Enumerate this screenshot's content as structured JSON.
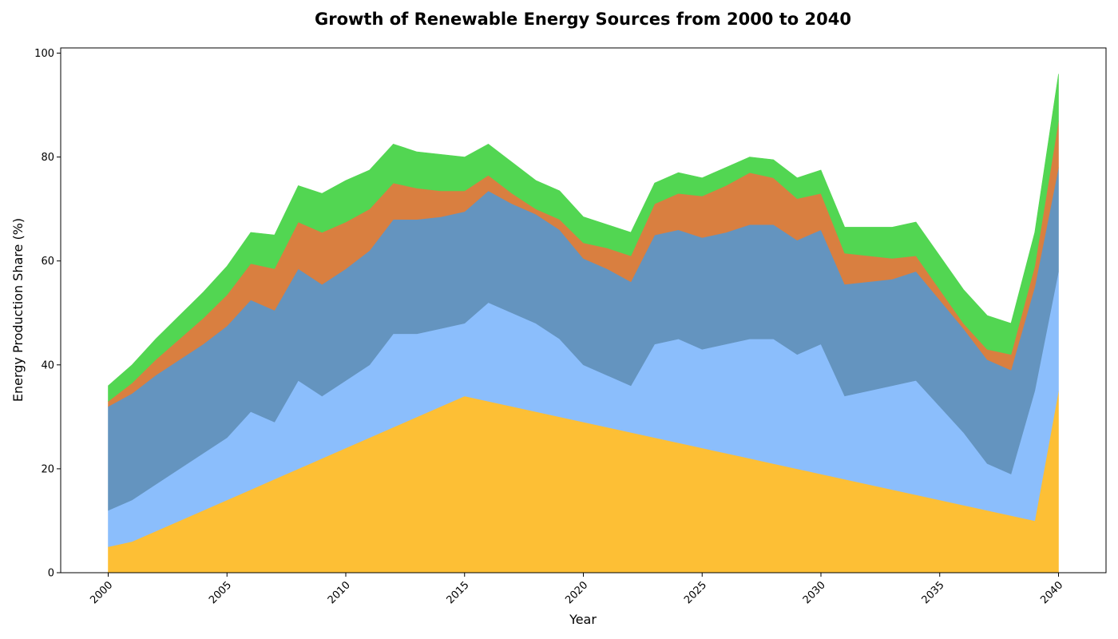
{
  "chart_data": {
    "type": "area",
    "stacked": true,
    "title": "Growth of Renewable Energy Sources from 2000 to 2040",
    "xlabel": "Year",
    "ylabel": "Energy Production Share (%)",
    "xlim": [
      1998,
      2042
    ],
    "ylim": [
      0,
      101
    ],
    "xticks": [
      2000,
      2005,
      2010,
      2015,
      2020,
      2025,
      2030,
      2035,
      2040
    ],
    "yticks": [
      0,
      20,
      40,
      60,
      80,
      100
    ],
    "grid": false,
    "legend": "none",
    "x": [
      2000,
      2001,
      2002,
      2003,
      2004,
      2005,
      2006,
      2007,
      2008,
      2009,
      2010,
      2011,
      2012,
      2013,
      2014,
      2015,
      2016,
      2017,
      2018,
      2019,
      2020,
      2021,
      2022,
      2023,
      2024,
      2025,
      2026,
      2027,
      2028,
      2029,
      2030,
      2031,
      2032,
      2033,
      2034,
      2035,
      2036,
      2037,
      2038,
      2039,
      2040
    ],
    "series": [
      {
        "color": "#fdbf35",
        "values": [
          5,
          6,
          8,
          10,
          12,
          14,
          16,
          18,
          20,
          22,
          24,
          26,
          28,
          30,
          32,
          34,
          33,
          32,
          31,
          30,
          29,
          28,
          27,
          26,
          25,
          24,
          23,
          22,
          21,
          20,
          19,
          18,
          17,
          16,
          15,
          14,
          13,
          12,
          11,
          10,
          35
        ]
      },
      {
        "color": "#8bbefc",
        "values": [
          7,
          8,
          9,
          10,
          11,
          12,
          15,
          11,
          17,
          12,
          13,
          14,
          18,
          16,
          15,
          14,
          19,
          18,
          17,
          15,
          11,
          10,
          9,
          18,
          20,
          19,
          21,
          23,
          24,
          22,
          25,
          16,
          18,
          20,
          22,
          18,
          14,
          9,
          8,
          25,
          23
        ]
      },
      {
        "color": "#6494bf",
        "values": [
          20,
          20.5,
          21,
          21,
          21,
          21.5,
          21.5,
          21.5,
          21.5,
          21.5,
          21.5,
          22,
          22,
          22,
          21.5,
          21.5,
          21.5,
          21,
          21,
          21,
          20.5,
          20.5,
          20,
          21,
          21,
          21.5,
          21.5,
          22,
          22,
          22,
          22,
          21.5,
          21,
          20.5,
          21,
          20.5,
          20,
          20,
          20,
          20,
          20
        ]
      },
      {
        "color": "#d97f40",
        "values": [
          1,
          2,
          3,
          4,
          5,
          6,
          7,
          8,
          9,
          10,
          9,
          8,
          7,
          6,
          5,
          4,
          3,
          2,
          1,
          2,
          3,
          4,
          5,
          6,
          7,
          8,
          9,
          10,
          9,
          8,
          7,
          6,
          5,
          4,
          3,
          2,
          1,
          2,
          3,
          4,
          9
        ]
      },
      {
        "color": "#52d652",
        "values": [
          3,
          3.5,
          4,
          4.5,
          5,
          5.5,
          6,
          6.5,
          7,
          7.5,
          8,
          7.5,
          7.5,
          7,
          7,
          6.5,
          6,
          6,
          5.5,
          5.5,
          5,
          4.5,
          4.5,
          4,
          4,
          3.5,
          3.5,
          3,
          3.5,
          4,
          4.5,
          5,
          5.5,
          6,
          6.5,
          6.5,
          6.5,
          6.5,
          6,
          6.5,
          9
        ]
      }
    ]
  }
}
